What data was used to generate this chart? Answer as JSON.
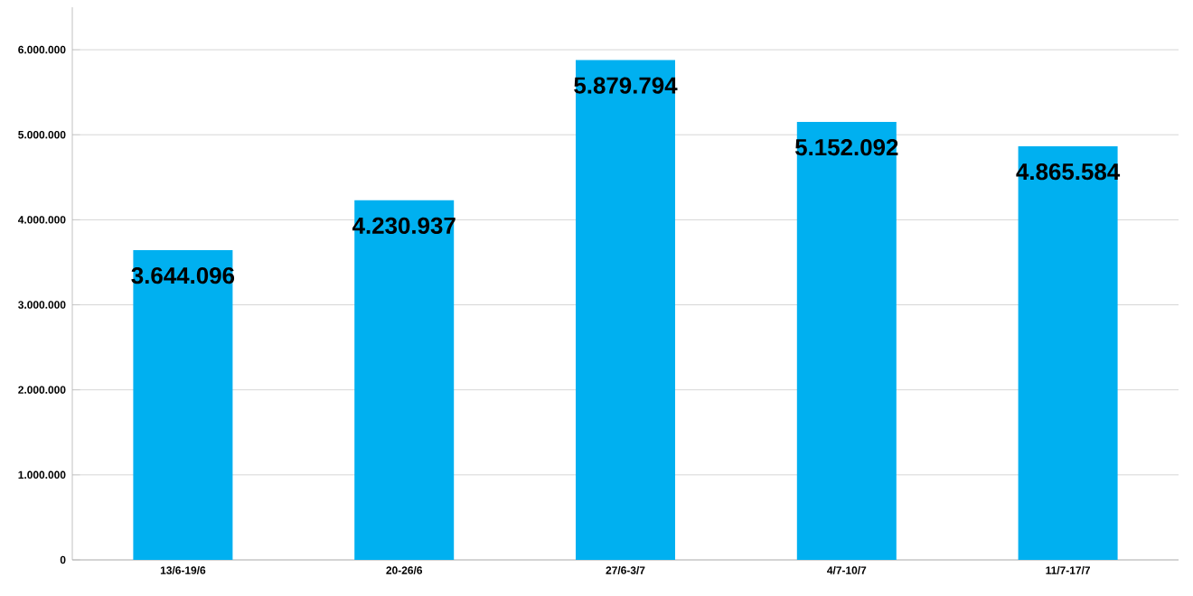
{
  "chart_data": {
    "type": "bar",
    "categories": [
      "13/6-19/6",
      "20-26/6",
      "27/6-3/7",
      "4/7-10/7",
      "11/7-17/7"
    ],
    "values": [
      3644096,
      4230937,
      5879794,
      5152092,
      4865584
    ],
    "value_labels": [
      "3.644.096",
      "4.230.937",
      "5.879.794",
      "5.152.092",
      "4.865.584"
    ],
    "color": "#00b0f0",
    "ylim": [
      0,
      6500000
    ],
    "yticks": [
      {
        "value": 0,
        "label": "0"
      },
      {
        "value": 1000000,
        "label": "1.000.000"
      },
      {
        "value": 2000000,
        "label": "2.000.000"
      },
      {
        "value": 3000000,
        "label": "3.000.000"
      },
      {
        "value": 4000000,
        "label": "4.000.000"
      },
      {
        "value": 5000000,
        "label": "5.000.000"
      },
      {
        "value": 6000000,
        "label": "6.000.000"
      }
    ],
    "grid": "y"
  }
}
